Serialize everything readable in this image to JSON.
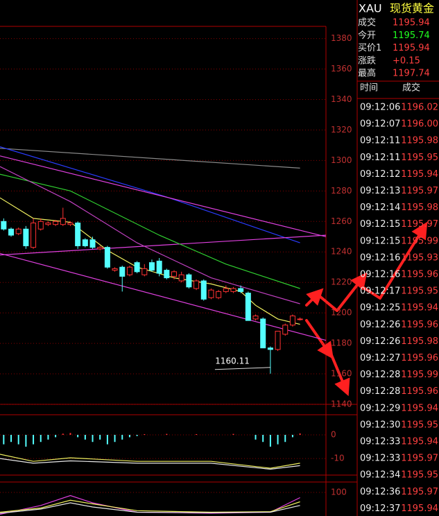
{
  "chart_data": [
    {
      "type": "candlestick",
      "xlim": [
        -0.5,
        43.5
      ],
      "ylim": [
        1140,
        1388
      ],
      "yticks": [
        1140,
        1160,
        1180,
        1200,
        1220,
        1240,
        1260,
        1280,
        1300,
        1320,
        1340,
        1360,
        1380
      ],
      "grid": true,
      "up_color": "#ff3232",
      "down_color": "#54ffff",
      "open": [
        1260,
        1255,
        1252,
        1255,
        1243,
        1255,
        1258,
        1258,
        1258,
        1258,
        1259,
        1248,
        1248,
        1242,
        1243,
        1228,
        1230,
        1225,
        1233,
        1225,
        1233,
        1234,
        1228,
        1224,
        1221,
        1225,
        1216,
        1221,
        1210,
        1210,
        1214,
        1214,
        1216,
        1213,
        1196,
        1196,
        1177,
        1176,
        1186,
        1192,
        1196
      ],
      "high": [
        1262,
        1256,
        1256,
        1257,
        1262,
        1262,
        1260,
        1261,
        1269,
        1260,
        1260,
        1249,
        1250,
        1244,
        1244,
        1230,
        1231,
        1231,
        1234,
        1232,
        1235,
        1236,
        1229,
        1228,
        1227,
        1226,
        1222,
        1222,
        1216,
        1215,
        1218,
        1217,
        1218,
        1214,
        1199,
        1197,
        1178,
        1188,
        1193,
        1199,
        1197
      ],
      "low": [
        1254,
        1250,
        1251,
        1242,
        1242,
        1254,
        1257,
        1257,
        1257,
        1257,
        1242,
        1243,
        1242,
        1241,
        1229,
        1227,
        1214,
        1224,
        1226,
        1224,
        1227,
        1224,
        1222,
        1222,
        1220,
        1216,
        1215,
        1208,
        1209,
        1209,
        1213,
        1213,
        1213,
        1195,
        1195,
        1177,
        1160.11,
        1175,
        1185,
        1191,
        1195
      ],
      "close": [
        1255,
        1251,
        1255,
        1244,
        1259,
        1260,
        1259,
        1260,
        1262,
        1259,
        1244,
        1244,
        1243,
        1243,
        1230,
        1229,
        1224,
        1230,
        1227,
        1229,
        1228,
        1226,
        1223,
        1227,
        1225,
        1217,
        1221,
        1209,
        1215,
        1214,
        1216,
        1216,
        1214,
        1195,
        1198,
        1177,
        1176,
        1188,
        1192,
        1198,
        1196
      ],
      "low_label": "1160.11",
      "lines": [
        {
          "color": "#8a8a8a",
          "x": [
            -0.5,
            40
          ],
          "values": [
            1308,
            1295
          ]
        },
        {
          "color": "#2a3cff",
          "x": [
            -0.5,
            22,
            40
          ],
          "values": [
            1309,
            1276,
            1246
          ]
        },
        {
          "color": "#e040e0",
          "x": [
            -0.5,
            43.5
          ],
          "values": [
            1303,
            1250
          ]
        },
        {
          "color": "#e040e0",
          "x": [
            -0.5,
            43.5
          ],
          "values": [
            1239,
            1182
          ]
        },
        {
          "color": "#e040e0",
          "x": [
            -0.5,
            43.5
          ],
          "values": [
            1238,
            1251
          ]
        },
        {
          "color": "#30d030",
          "x": [
            -0.5,
            9,
            21,
            30,
            40
          ],
          "values": [
            1291,
            1280,
            1251,
            1232,
            1216
          ]
        },
        {
          "color": "#c040c0",
          "x": [
            -0.5,
            9,
            18,
            28,
            40
          ],
          "values": [
            1296,
            1273,
            1246,
            1223,
            1206
          ]
        },
        {
          "color": "#f0f060",
          "x": [
            -0.5,
            4,
            9,
            14,
            18,
            23,
            28,
            32,
            34,
            37,
            40
          ],
          "values": [
            1275.5,
            1262,
            1259.5,
            1241,
            1230,
            1223,
            1219,
            1214,
            1205,
            1196,
            1192.5
          ]
        }
      ]
    },
    {
      "type": "bar",
      "xlim": [
        -0.5,
        43.5
      ],
      "ylim": [
        -17,
        8.5
      ],
      "yticks": [
        0,
        -10
      ],
      "grid": true,
      "up_color": "#ff3232",
      "down_color": "#54ffff",
      "values": [
        -4,
        -3,
        -4,
        -5,
        -4,
        -3,
        -2,
        -1,
        0.5,
        0.8,
        -1,
        -2,
        -3,
        -2,
        -4,
        -3,
        -2,
        -1,
        -0.5,
        0.3,
        0,
        0,
        0.4,
        0,
        0,
        0,
        0.3,
        0,
        0,
        0,
        0,
        0.4,
        0,
        0,
        -2,
        -3,
        -5,
        -4,
        -3,
        -1,
        0.6
      ],
      "lines": [
        {
          "color": "#f0f060",
          "x": [
            -0.5,
            4,
            9,
            18,
            28,
            36,
            40
          ],
          "values": [
            -8.2,
            -11.2,
            -9.7,
            -11.2,
            -11.2,
            -14.1,
            -12
          ]
        },
        {
          "color": "#e8e8e8",
          "x": [
            -0.5,
            4,
            9,
            18,
            28,
            36,
            40
          ],
          "values": [
            -10,
            -12,
            -11,
            -12,
            -12,
            -14.5,
            -13
          ]
        }
      ]
    },
    {
      "type": "line",
      "xlim": [
        -0.5,
        43.5
      ],
      "ylim": [
        54.7,
        120
      ],
      "yticks": [
        100
      ],
      "grid": true,
      "lines": [
        {
          "color": "#e040e0",
          "x": [
            -0.5,
            5,
            9,
            12,
            18,
            28,
            36,
            40
          ],
          "values": [
            58,
            75,
            94,
            80,
            62,
            60,
            62,
            90
          ]
        },
        {
          "color": "#f0f060",
          "x": [
            -0.5,
            5,
            9,
            12,
            18,
            28,
            36,
            40
          ],
          "values": [
            62,
            70,
            85,
            78,
            65,
            62,
            63,
            82
          ]
        },
        {
          "color": "#e8e8e8",
          "x": [
            -0.5,
            5,
            9,
            12,
            18,
            28,
            36,
            40
          ],
          "values": [
            60,
            68,
            80,
            72,
            62,
            61,
            62,
            75
          ]
        }
      ]
    }
  ],
  "quote": {
    "symbol": "XAU",
    "name": "现货黄金",
    "rows": [
      {
        "label": "成交",
        "value": "1195.94",
        "color": "#ff4040"
      },
      {
        "label": "今开",
        "value": "1195.74",
        "color": "#20ff20"
      },
      {
        "label": "买价1",
        "value": "1195.94",
        "color": "#ff4040"
      },
      {
        "label": "涨跌",
        "value": "+0.15",
        "color": "#ff4040"
      },
      {
        "label": "最高",
        "value": "1197.74",
        "color": "#ff4040"
      }
    ]
  },
  "trades": {
    "header": [
      "时间",
      "成交"
    ],
    "rows": [
      [
        "09:12:06",
        "1196.02"
      ],
      [
        "09:12:07",
        "1196.00"
      ],
      [
        "09:12:11",
        "1195.98"
      ],
      [
        "09:12:11",
        "1195.95"
      ],
      [
        "09:12:12",
        "1195.94"
      ],
      [
        "09:12:13",
        "1195.97"
      ],
      [
        "09:12:14",
        "1195.98"
      ],
      [
        "09:12:15",
        "1195.97"
      ],
      [
        "09:12:15",
        "1195.99"
      ],
      [
        "09:12:16",
        "1195.93"
      ],
      [
        "09:12:16",
        "1195.96"
      ],
      [
        "09:12:17",
        "1195.95"
      ],
      [
        "09:12:25",
        "1195.94"
      ],
      [
        "09:12:26",
        "1195.96"
      ],
      [
        "09:12:26",
        "1195.98"
      ],
      [
        "09:12:27",
        "1195.96"
      ],
      [
        "09:12:28",
        "1195.99"
      ],
      [
        "09:12:28",
        "1195.96"
      ],
      [
        "09:12:29",
        "1195.94"
      ],
      [
        "09:12:30",
        "1195.95"
      ],
      [
        "09:12:33",
        "1195.94"
      ],
      [
        "09:12:33",
        "1195.97"
      ],
      [
        "09:12:34",
        "1195.95"
      ],
      [
        "09:12:36",
        "1195.97"
      ],
      [
        "09:12:37",
        "1195.94"
      ]
    ]
  }
}
